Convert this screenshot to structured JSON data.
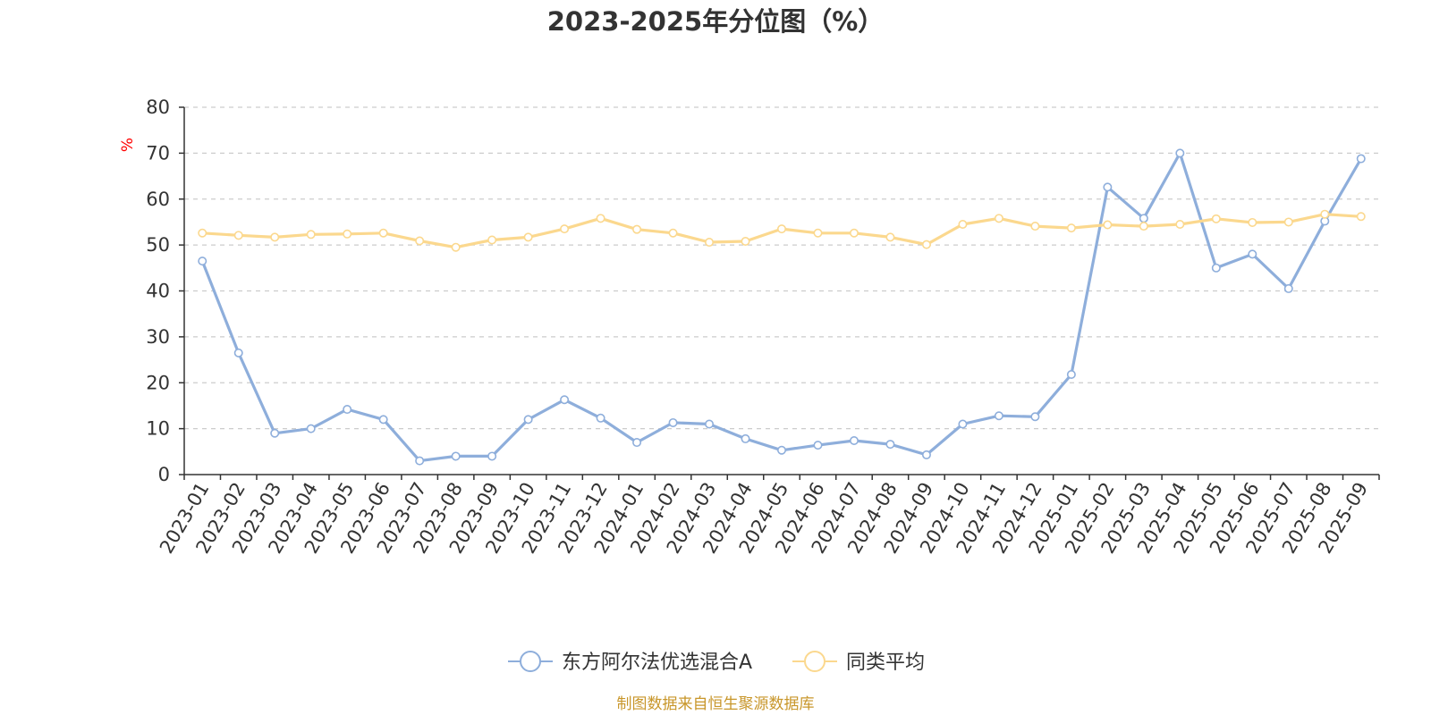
{
  "chart_data": {
    "type": "line",
    "title": "2023-2025年分位图（%）",
    "ylabel": "%",
    "xlabel": "",
    "ylim": [
      0,
      80
    ],
    "yticks": [
      0,
      10,
      20,
      30,
      40,
      50,
      60,
      70,
      80
    ],
    "grid": true,
    "legend_position": "bottom",
    "categories": [
      "2023-01",
      "2023-02",
      "2023-03",
      "2023-04",
      "2023-05",
      "2023-06",
      "2023-07",
      "2023-08",
      "2023-09",
      "2023-10",
      "2023-11",
      "2023-12",
      "2024-01",
      "2024-02",
      "2024-03",
      "2024-04",
      "2024-05",
      "2024-06",
      "2024-07",
      "2024-08",
      "2024-09",
      "2024-10",
      "2024-11",
      "2024-12",
      "2025-01",
      "2025-02",
      "2025-03",
      "2025-04",
      "2025-05",
      "2025-06",
      "2025-07",
      "2025-08",
      "2025-09"
    ],
    "series": [
      {
        "name": "东方阿尔法优选混合A",
        "color": "#8eaedb",
        "values": [
          46.5,
          26.5,
          9.0,
          10.0,
          14.2,
          12.0,
          3.0,
          4.0,
          4.0,
          12.0,
          16.3,
          12.3,
          7.0,
          11.3,
          11.0,
          7.8,
          5.3,
          6.4,
          7.4,
          6.6,
          4.3,
          11.0,
          12.8,
          12.6,
          21.8,
          62.6,
          55.8,
          70.0,
          45.0,
          48.0,
          40.5,
          55.2,
          68.8
        ]
      },
      {
        "name": "同类平均",
        "color": "#fbd88e",
        "values": [
          52.6,
          52.1,
          51.7,
          52.3,
          52.4,
          52.6,
          50.9,
          49.5,
          51.1,
          51.7,
          53.5,
          55.8,
          53.4,
          52.6,
          50.6,
          50.8,
          53.5,
          52.6,
          52.6,
          51.7,
          50.1,
          54.5,
          55.8,
          54.1,
          53.7,
          54.4,
          54.1,
          54.5,
          55.7,
          54.9,
          55.0,
          56.7,
          56.2
        ]
      }
    ]
  },
  "footer": {
    "source": "制图数据来自恒生聚源数据库"
  },
  "colors": {
    "axis": "#333333",
    "grid": "#cccccc",
    "ylabel": "#ff0000",
    "source": "#c8962a"
  }
}
